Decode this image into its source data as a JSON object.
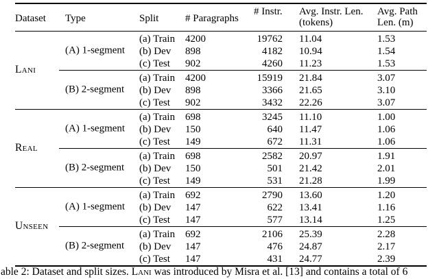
{
  "table": {
    "columns": [
      {
        "l1": "Dataset"
      },
      {
        "l1": "Type"
      },
      {
        "l1": "Split"
      },
      {
        "l1": "# Paragraphs"
      },
      {
        "l1": "# Instr."
      },
      {
        "l1": "Avg. Instr. Len.",
        "l2": "(tokens)"
      },
      {
        "l1": "Avg. Path",
        "l2": "Len. (m)"
      }
    ],
    "groups": [
      {
        "dataset": "Lani",
        "blocks": [
          {
            "type": "(A) 1-segment",
            "rows": [
              {
                "split": "(a) Train",
                "paragraphs": "4200",
                "instr": "19762",
                "avg_instr_len": "11.04",
                "avg_path_len": "1.53"
              },
              {
                "split": "(b) Dev",
                "paragraphs": "898",
                "instr": "4182",
                "avg_instr_len": "10.94",
                "avg_path_len": "1.54"
              },
              {
                "split": "(c) Test",
                "paragraphs": "902",
                "instr": "4260",
                "avg_instr_len": "11.23",
                "avg_path_len": "1.53"
              }
            ]
          },
          {
            "type": "(B) 2-segment",
            "rows": [
              {
                "split": "(a) Train",
                "paragraphs": "4200",
                "instr": "15919",
                "avg_instr_len": "21.84",
                "avg_path_len": "3.07"
              },
              {
                "split": "(b) Dev",
                "paragraphs": "898",
                "instr": "3366",
                "avg_instr_len": "21.65",
                "avg_path_len": "3.10"
              },
              {
                "split": "(c) Test",
                "paragraphs": "902",
                "instr": "3432",
                "avg_instr_len": "22.26",
                "avg_path_len": "3.07"
              }
            ]
          }
        ]
      },
      {
        "dataset": "Real",
        "blocks": [
          {
            "type": "(A) 1-segment",
            "rows": [
              {
                "split": "(a) Train",
                "paragraphs": "698",
                "instr": "3245",
                "avg_instr_len": "11.10",
                "avg_path_len": "1.00"
              },
              {
                "split": "(b) Dev",
                "paragraphs": "150",
                "instr": "640",
                "avg_instr_len": "11.47",
                "avg_path_len": "1.06"
              },
              {
                "split": "(c) Test",
                "paragraphs": "149",
                "instr": "672",
                "avg_instr_len": "11.31",
                "avg_path_len": "1.06"
              }
            ]
          },
          {
            "type": "(B) 2-segment",
            "rows": [
              {
                "split": "(a) Train",
                "paragraphs": "698",
                "instr": "2582",
                "avg_instr_len": "20.97",
                "avg_path_len": "1.91"
              },
              {
                "split": "(b) Dev",
                "paragraphs": "150",
                "instr": "501",
                "avg_instr_len": "21.42",
                "avg_path_len": "2.01"
              },
              {
                "split": "(c) Test",
                "paragraphs": "149",
                "instr": "531",
                "avg_instr_len": "21.28",
                "avg_path_len": "1.99"
              }
            ]
          }
        ]
      },
      {
        "dataset": "Unseen",
        "blocks": [
          {
            "type": "(A) 1-segment",
            "rows": [
              {
                "split": "(a) Train",
                "paragraphs": "692",
                "instr": "2790",
                "avg_instr_len": "13.60",
                "avg_path_len": "1.20"
              },
              {
                "split": "(b) Dev",
                "paragraphs": "147",
                "instr": "622",
                "avg_instr_len": "13.41",
                "avg_path_len": "1.16"
              },
              {
                "split": "(c) Test",
                "paragraphs": "147",
                "instr": "577",
                "avg_instr_len": "13.14",
                "avg_path_len": "1.25"
              }
            ]
          },
          {
            "type": "(B) 2-segment",
            "rows": [
              {
                "split": "(a) Train",
                "paragraphs": "692",
                "instr": "2106",
                "avg_instr_len": "25.39",
                "avg_path_len": "2.28"
              },
              {
                "split": "(b) Dev",
                "paragraphs": "147",
                "instr": "476",
                "avg_instr_len": "24.87",
                "avg_path_len": "2.17"
              },
              {
                "split": "(c) Test",
                "paragraphs": "147",
                "instr": "431",
                "avg_instr_len": "24.77",
                "avg_path_len": "2.39"
              }
            ]
          }
        ]
      }
    ]
  },
  "caption": {
    "prefix": "able 2: Dataset and split sizes. ",
    "smallcaps": "Lani",
    "suffix": " was introduced by Misra et al. [13] and contains a total of 6"
  }
}
